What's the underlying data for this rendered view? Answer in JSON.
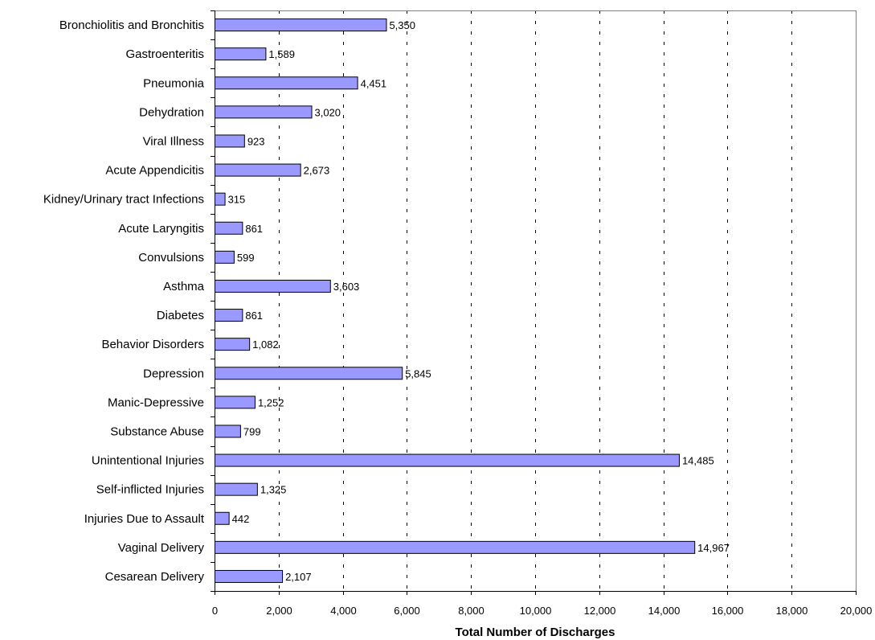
{
  "chart_data": {
    "type": "bar",
    "orientation": "horizontal",
    "title": "",
    "xlabel": "Total Number of Discharges",
    "ylabel": "",
    "xlim": [
      0,
      20000
    ],
    "xticks": [
      0,
      2000,
      4000,
      6000,
      8000,
      10000,
      12000,
      14000,
      16000,
      18000,
      20000
    ],
    "xtick_labels": [
      "0",
      "2,000",
      "4,000",
      "6,000",
      "8,000",
      "10,000",
      "12,000",
      "14,000",
      "16,000",
      "18,000",
      "20,000"
    ],
    "grid": "vertical dashed",
    "legend": "none",
    "bar_color": "#9999ff",
    "bar_edge_color": "#000000",
    "categories": [
      "Bronchiolitis and Bronchitis",
      "Gastroenteritis",
      "Pneumonia",
      "Dehydration",
      "Viral Illness",
      "Acute Appendicitis",
      "Kidney/Urinary tract Infections",
      "Acute Laryngitis",
      "Convulsions",
      "Asthma",
      "Diabetes",
      "Behavior Disorders",
      "Depression",
      "Manic-Depressive",
      "Substance Abuse",
      "Unintentional Injuries",
      "Self-inflicted Injuries",
      "Injuries Due to Assault",
      "Vaginal Delivery",
      "Cesarean Delivery"
    ],
    "values": [
      5350,
      1589,
      4451,
      3020,
      923,
      2673,
      315,
      861,
      599,
      3603,
      861,
      1082,
      5845,
      1252,
      799,
      14485,
      1325,
      442,
      14967,
      2107
    ],
    "data_labels": [
      "5,350",
      "1,589",
      "4,451",
      "3,020",
      "923",
      "2,673",
      "315",
      "861",
      "599",
      "3,603",
      "861",
      "1,082",
      "5,845",
      "1,252",
      "799",
      "14,485",
      "1,325",
      "442",
      "14,967",
      "2,107"
    ]
  }
}
